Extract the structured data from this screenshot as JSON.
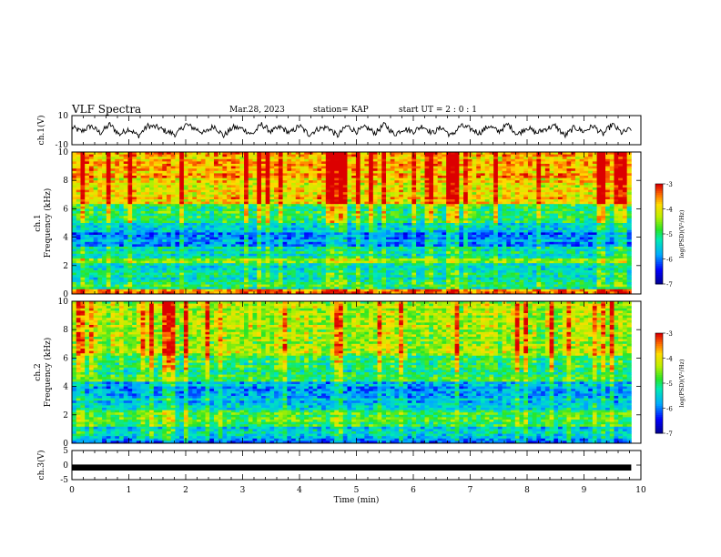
{
  "header": {
    "title": "VLF Spectra",
    "date": "Mar.28, 2023",
    "station": "station= KAP",
    "start_ut": "start  UT =  2 : 0  : 1"
  },
  "chart_data": [
    {
      "type": "line",
      "panel": "ch1-waveform",
      "ylabel": "ch.1(V)",
      "ylim": [
        -10,
        10
      ],
      "yticks": [
        "10",
        "-10"
      ],
      "xlim": [
        0,
        10
      ],
      "x_extent": [
        0,
        9.83
      ],
      "description_of_series": "dense oscillating voltage trace roughly between -5 and 5 V",
      "series": [
        {
          "y": [
            2,
            -1,
            3,
            -2,
            4,
            -3,
            1,
            -4,
            3,
            2,
            -1,
            -3,
            4,
            1,
            -2,
            3,
            -4,
            2,
            1,
            -3,
            4,
            -1,
            2,
            -2,
            3,
            -3,
            1,
            2,
            -4,
            3,
            -1,
            2,
            -2,
            4,
            -3,
            1,
            -1,
            3,
            -2,
            2,
            -4,
            3,
            1,
            -2,
            3,
            -1,
            4,
            -3,
            2,
            -2,
            1,
            3,
            -4,
            2,
            -1,
            3,
            -3,
            4,
            -2,
            1
          ]
        }
      ]
    },
    {
      "type": "heatmap",
      "panel": "ch1-spectrogram",
      "ylabel": "ch.1 Frequency (kHz)",
      "ylim": [
        0,
        10
      ],
      "yticks": [
        "0",
        "2",
        "4",
        "6",
        "8",
        "10"
      ],
      "xlim": [
        0,
        10
      ],
      "x_extent": [
        0,
        9.83
      ],
      "colorbar": {
        "label": "log(PSD)(V²/Hz)",
        "range": [
          -7,
          -3
        ],
        "ticks": [
          "-3",
          "-4",
          "-5",
          "-6",
          "-7"
        ]
      },
      "bands": [
        {
          "f": [
            0.0,
            0.3
          ],
          "value": -3.6
        },
        {
          "f": [
            0.3,
            1.0
          ],
          "value": -5.0
        },
        {
          "f": [
            1.0,
            2.2
          ],
          "value": -5.3
        },
        {
          "f": [
            2.2,
            2.5
          ],
          "value": -4.6
        },
        {
          "f": [
            2.5,
            3.3
          ],
          "value": -5.2
        },
        {
          "f": [
            3.3,
            4.4
          ],
          "value": -5.9
        },
        {
          "f": [
            4.4,
            5.0
          ],
          "value": -5.4
        },
        {
          "f": [
            5.0,
            6.3
          ],
          "value": -4.9
        },
        {
          "f": [
            6.3,
            8.2
          ],
          "value": -3.9
        },
        {
          "f": [
            8.2,
            10.0
          ],
          "value": -3.7
        }
      ]
    },
    {
      "type": "heatmap",
      "panel": "ch2-spectrogram",
      "ylabel": "ch.2 Frequency (kHz)",
      "ylim": [
        0,
        10
      ],
      "yticks": [
        "0",
        "2",
        "4",
        "6",
        "8",
        "10"
      ],
      "xlim": [
        0,
        10
      ],
      "x_extent": [
        0,
        9.83
      ],
      "colorbar": {
        "label": "log(PSD)(V²/Hz)",
        "range": [
          -7,
          -3
        ],
        "ticks": [
          "-3",
          "-4",
          "-5",
          "-6",
          "-7"
        ]
      },
      "bands": [
        {
          "f": [
            0.0,
            0.4
          ],
          "value": -6.0
        },
        {
          "f": [
            0.4,
            1.2
          ],
          "value": -5.4
        },
        {
          "f": [
            1.2,
            2.4
          ],
          "value": -4.9
        },
        {
          "f": [
            2.4,
            3.2
          ],
          "value": -5.6
        },
        {
          "f": [
            3.2,
            4.4
          ],
          "value": -5.7
        },
        {
          "f": [
            4.4,
            6.2
          ],
          "value": -5.0
        },
        {
          "f": [
            6.2,
            8.2
          ],
          "value": -4.4
        },
        {
          "f": [
            8.2,
            10.0
          ],
          "value": -4.3
        }
      ]
    },
    {
      "type": "line",
      "panel": "ch3-waveform",
      "ylabel": "ch.3(V)",
      "ylim": [
        -5,
        5
      ],
      "yticks": [
        "5",
        "0",
        "-5"
      ],
      "xlim": [
        0,
        10
      ],
      "x_extent": [
        0,
        9.83
      ],
      "series": [
        {
          "y_min": -0.6,
          "y_max": 0.2
        }
      ],
      "xlabel": "Time  (min)",
      "xticks": [
        "0",
        "1",
        "2",
        "3",
        "4",
        "5",
        "6",
        "7",
        "8",
        "9",
        "10"
      ]
    }
  ]
}
